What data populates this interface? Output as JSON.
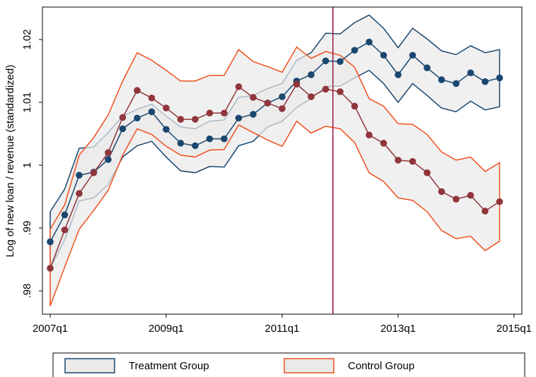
{
  "chart_data": {
    "type": "line_band",
    "y_label": "Log of new loan / revenue (standardized)",
    "x": [
      "2007q1",
      "2007q2",
      "2007q3",
      "2007q4",
      "2008q1",
      "2008q2",
      "2008q3",
      "2008q4",
      "2009q1",
      "2009q2",
      "2009q3",
      "2009q4",
      "2010q1",
      "2010q2",
      "2010q3",
      "2010q4",
      "2011q1",
      "2011q2",
      "2011q3",
      "2011q4",
      "2012q1",
      "2012q2",
      "2012q3",
      "2012q4",
      "2013q1",
      "2013q2",
      "2013q3",
      "2013q4",
      "2014q1",
      "2014q2",
      "2014q3",
      "2014q4"
    ],
    "xticks": [
      "2007q1",
      "2009q1",
      "2011q1",
      "2013q1",
      "2015q1"
    ],
    "ylim": [
      0.97629,
      1.02517
    ],
    "yticks": [
      {
        "value": 0.98,
        "label": ".98"
      },
      {
        "value": 0.99,
        "label": ".99"
      },
      1,
      1.01,
      1.02
    ],
    "vline": {
      "x": 2011.875,
      "color": "#a0144a"
    },
    "series": [
      {
        "name": "Treatment Group",
        "color": "#1a476f",
        "band_edge_color": "#1a476f",
        "band_fill": "#eaeaea",
        "values": [
          0.9878,
          0.9921,
          0.9984,
          0.9989,
          1.0009,
          1.0058,
          1.0075,
          1.0085,
          1.0057,
          1.0035,
          1.0031,
          1.0042,
          1.0042,
          1.0075,
          1.0081,
          1.0099,
          1.0109,
          1.0134,
          1.0144,
          1.0166,
          1.0165,
          1.0183,
          1.0196,
          1.0175,
          1.0144,
          1.0175,
          1.0155,
          1.0136,
          1.013,
          1.0147,
          1.0133,
          1.0139
        ],
        "upper": [
          0.9926,
          0.9962,
          1.0027,
          1.0029,
          1.0052,
          1.0078,
          1.0089,
          1.0097,
          1.0078,
          1.0061,
          1.0058,
          1.007,
          1.0072,
          1.0108,
          1.0111,
          1.0122,
          1.013,
          1.0167,
          1.0179,
          1.021,
          1.0209,
          1.0227,
          1.0239,
          1.0218,
          1.0187,
          1.0218,
          1.0201,
          1.0182,
          1.0176,
          1.019,
          1.0179,
          1.0184
        ],
        "lower": [
          0.9836,
          0.9881,
          0.9943,
          0.9948,
          0.9969,
          1.0013,
          1.0031,
          1.0038,
          1.0013,
          0.9991,
          0.9988,
          0.9998,
          0.9997,
          1.0031,
          1.0038,
          1.0061,
          1.007,
          1.0092,
          1.0106,
          1.0125,
          1.0126,
          1.0139,
          1.0151,
          1.013,
          1.01,
          1.013,
          1.0111,
          1.0091,
          1.0085,
          1.0102,
          1.0088,
          1.0093
        ]
      },
      {
        "name": "Control Group",
        "color": "#90353b",
        "band_edge_color": "#f0501e",
        "band_fill": "#eaeaea",
        "values": [
          0.9836,
          0.9897,
          0.9955,
          0.9988,
          1.002,
          1.0076,
          1.0119,
          1.0107,
          1.0091,
          1.0073,
          1.0073,
          1.0083,
          1.0083,
          1.0125,
          1.0108,
          1.0099,
          1.009,
          1.0129,
          1.0109,
          1.0121,
          1.0117,
          1.0094,
          1.0048,
          1.0035,
          1.0008,
          1.0006,
          0.9988,
          0.9958,
          0.9946,
          0.9952,
          0.9927,
          0.9942
        ],
        "upper": [
          0.9898,
          0.9937,
          1.0016,
          1.0044,
          1.008,
          1.0134,
          1.0179,
          1.0167,
          1.0151,
          1.0134,
          1.0134,
          1.0143,
          1.0143,
          1.0184,
          1.0165,
          1.0157,
          1.0148,
          1.0188,
          1.017,
          1.0181,
          1.0175,
          1.0156,
          1.0106,
          1.0094,
          1.0066,
          1.0065,
          1.0049,
          1.0021,
          1.0008,
          1.0013,
          0.999,
          1.0004
        ],
        "lower": [
          0.9776,
          0.9838,
          0.9898,
          0.9928,
          0.996,
          1.0016,
          1.0058,
          1.0049,
          1.003,
          1.0016,
          1.0013,
          1.0024,
          1.0025,
          1.0064,
          1.0052,
          1.004,
          1.003,
          1.007,
          1.0051,
          1.0062,
          1.0058,
          1.0036,
          0.9988,
          0.9974,
          0.9948,
          0.9944,
          0.9926,
          0.9896,
          0.9883,
          0.9887,
          0.9864,
          0.9879
        ]
      }
    ]
  }
}
